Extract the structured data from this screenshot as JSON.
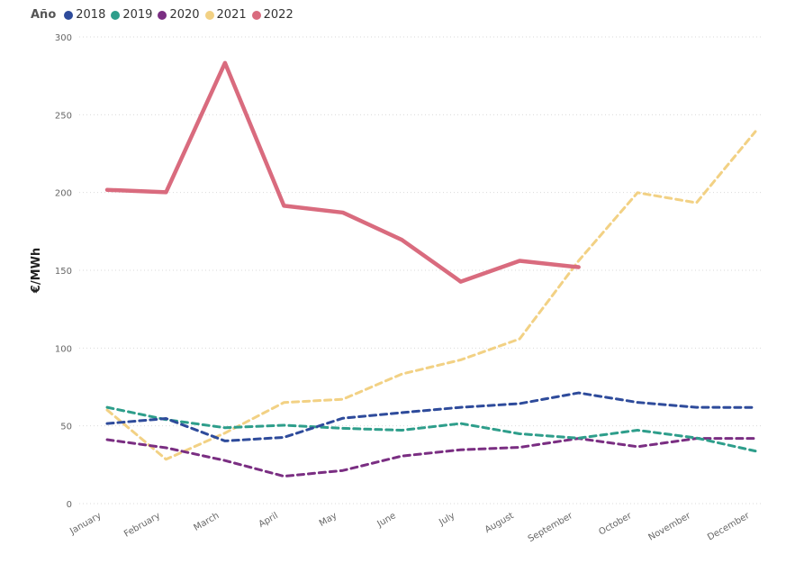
{
  "chart_data": {
    "type": "line",
    "legend_title": "Año",
    "legend_position": "top-left",
    "ylabel": "€/MWh",
    "xlabel": "",
    "ylim": [
      0,
      300
    ],
    "yticks": [
      0,
      50,
      100,
      150,
      200,
      250,
      300
    ],
    "grid": "horizontal-dotted",
    "categories": [
      "January",
      "February",
      "March",
      "April",
      "May",
      "June",
      "July",
      "August",
      "September",
      "October",
      "November",
      "December"
    ],
    "series": [
      {
        "name": "2018",
        "color": "#2e4b9b",
        "dash": true,
        "values": [
          51.5,
          54.7,
          40.3,
          42.6,
          54.9,
          58.5,
          61.9,
          64.3,
          71.2,
          65.1,
          61.9,
          61.8
        ]
      },
      {
        "name": "2019",
        "color": "#2e9e8b",
        "dash": true,
        "values": [
          61.9,
          54.0,
          48.8,
          50.4,
          48.4,
          47.2,
          51.5,
          44.9,
          42.1,
          47.2,
          42.2,
          33.8
        ]
      },
      {
        "name": "2020",
        "color": "#7a2e82",
        "dash": true,
        "values": [
          41.1,
          35.9,
          27.7,
          17.6,
          21.3,
          30.6,
          34.6,
          36.2,
          41.9,
          36.6,
          41.9,
          41.9
        ]
      },
      {
        "name": "2021",
        "color": "#f2d184",
        "dash": true,
        "values": [
          60.2,
          28.5,
          45.4,
          65.0,
          67.1,
          83.3,
          92.4,
          105.9,
          156.1,
          199.9,
          193.4,
          239.2
        ]
      },
      {
        "name": "2022",
        "color": "#d96b7e",
        "dash": false,
        "values": [
          201.7,
          200.2,
          283.3,
          191.5,
          187.1,
          169.6,
          142.7,
          156.1,
          152.0,
          null,
          null,
          null
        ]
      }
    ]
  }
}
